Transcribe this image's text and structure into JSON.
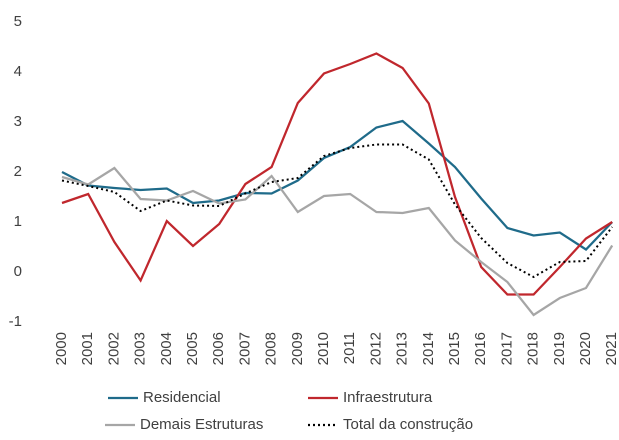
{
  "chart_data": {
    "type": "line",
    "categories": [
      "2000",
      "2001",
      "2002",
      "2003",
      "2004",
      "2005",
      "2006",
      "2007",
      "2008",
      "2009",
      "2010",
      "2011",
      "2012",
      "2013",
      "2014",
      "2015",
      "2016",
      "2017",
      "2018",
      "2019",
      "2020",
      "2021"
    ],
    "series": [
      {
        "name": "Residencial",
        "color": "#1f6b8a",
        "values": [
          2.0,
          1.73,
          1.68,
          1.64,
          1.67,
          1.38,
          1.43,
          1.58,
          1.57,
          1.83,
          2.28,
          2.5,
          2.89,
          3.02,
          2.57,
          2.1,
          1.47,
          0.88,
          0.73,
          0.79,
          0.45,
          1.0
        ]
      },
      {
        "name": "Infraestrutura",
        "color": "#c0272d",
        "values": [
          1.38,
          1.56,
          0.6,
          -0.17,
          1.02,
          0.52,
          0.96,
          1.76,
          2.1,
          3.38,
          3.97,
          4.16,
          4.37,
          4.08,
          3.37,
          1.5,
          0.1,
          -0.45,
          -0.45,
          0.1,
          0.67,
          1.0
        ]
      },
      {
        "name": "Demais Estruturas",
        "color": "#a6a6a6",
        "values": [
          1.9,
          1.75,
          2.08,
          1.46,
          1.43,
          1.62,
          1.37,
          1.45,
          1.92,
          1.2,
          1.52,
          1.56,
          1.2,
          1.18,
          1.28,
          0.63,
          0.2,
          -0.2,
          -0.86,
          -0.52,
          -0.32,
          0.53
        ]
      },
      {
        "name": "Total da construção",
        "color": "#000000",
        "dash": "dotted",
        "values": [
          1.83,
          1.72,
          1.6,
          1.22,
          1.43,
          1.33,
          1.32,
          1.57,
          1.8,
          1.88,
          2.32,
          2.48,
          2.55,
          2.55,
          2.25,
          1.35,
          0.68,
          0.18,
          -0.1,
          0.2,
          0.22,
          0.9
        ]
      }
    ],
    "ylim": [
      -1,
      5
    ],
    "yticks": [
      -1,
      0,
      1,
      2,
      3,
      4,
      5
    ],
    "grid": false,
    "legend": "bottom"
  }
}
